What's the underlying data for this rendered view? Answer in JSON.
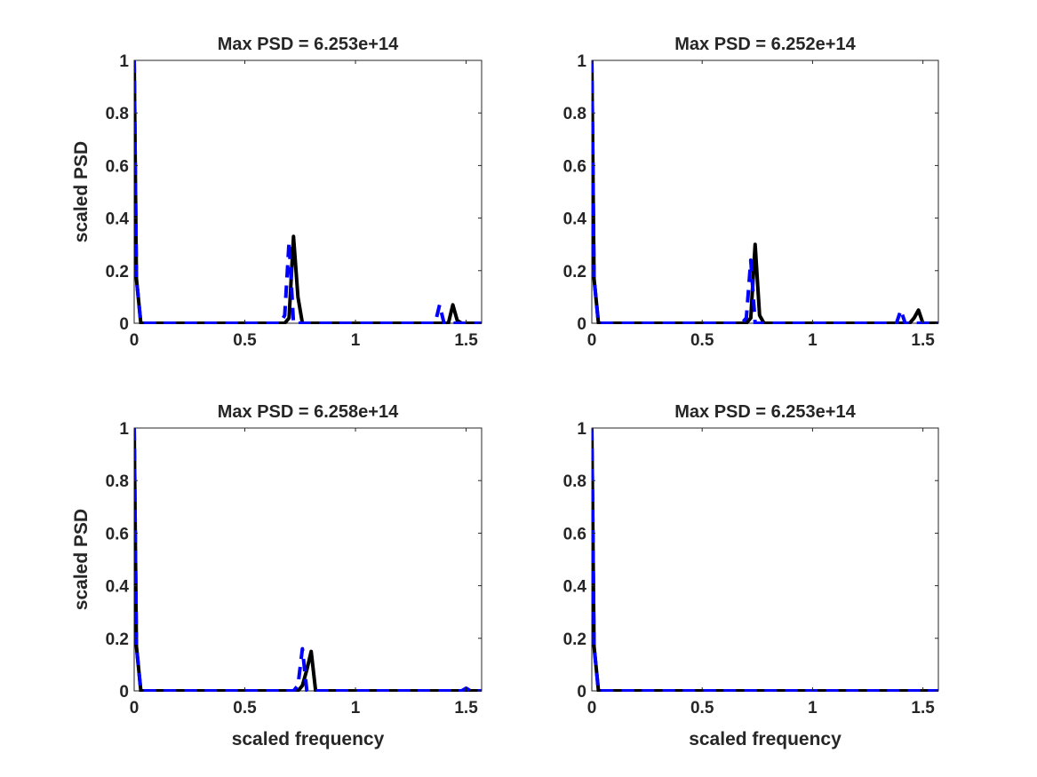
{
  "colors": {
    "solid": "#000000",
    "dashed": "#0000ff",
    "axes": "#262626"
  },
  "chart_data": [
    {
      "type": "line",
      "title": "Max PSD = 6.253e+14",
      "xlabel": "",
      "ylabel": "scaled PSD",
      "xlim": [
        0,
        1.57
      ],
      "ylim": [
        0,
        1
      ],
      "xticks": [
        0,
        0.5,
        1,
        1.5
      ],
      "xtick_labels": [
        "0",
        "0.5",
        "1",
        "1.5"
      ],
      "yticks": [
        0,
        0.2,
        0.4,
        0.6,
        0.8,
        1
      ],
      "ytick_labels": [
        "0",
        "0.2",
        "0.4",
        "0.6",
        "0.8",
        "1"
      ],
      "grid": false,
      "series": [
        {
          "style": "solid",
          "color": "#000000",
          "x": [
            0,
            0.01,
            0.03,
            0.1,
            0.68,
            0.7,
            0.72,
            0.74,
            0.76,
            1.4,
            1.42,
            1.44,
            1.46,
            1.48,
            1.57
          ],
          "y": [
            1,
            0.17,
            0,
            0,
            0,
            0.02,
            0.33,
            0.1,
            0,
            0,
            0,
            0.07,
            0.01,
            0,
            0
          ]
        },
        {
          "style": "dashed",
          "color": "#0000ff",
          "x": [
            0,
            0.01,
            0.03,
            0.1,
            0.66,
            0.68,
            0.7,
            0.72,
            1.36,
            1.38,
            1.4,
            1.57
          ],
          "y": [
            1,
            0.17,
            0,
            0,
            0,
            0.03,
            0.31,
            0,
            0,
            0.07,
            0,
            0
          ]
        }
      ]
    },
    {
      "type": "line",
      "title": "Max PSD = 6.252e+14",
      "xlabel": "",
      "ylabel": "",
      "xlim": [
        0,
        1.57
      ],
      "ylim": [
        0,
        1
      ],
      "xticks": [
        0,
        0.5,
        1,
        1.5
      ],
      "xtick_labels": [
        "0",
        "0.5",
        "1",
        "1.5"
      ],
      "yticks": [
        0,
        0.2,
        0.4,
        0.6,
        0.8,
        1
      ],
      "ytick_labels": [
        "0",
        "0.2",
        "0.4",
        "0.6",
        "0.8",
        "1"
      ],
      "grid": false,
      "series": [
        {
          "style": "solid",
          "color": "#000000",
          "x": [
            0,
            0.01,
            0.03,
            0.1,
            0.7,
            0.72,
            0.74,
            0.76,
            0.78,
            1.42,
            1.44,
            1.46,
            1.48,
            1.5,
            1.57
          ],
          "y": [
            1,
            0.17,
            0,
            0,
            0,
            0.02,
            0.3,
            0.03,
            0,
            0,
            0,
            0.02,
            0.05,
            0,
            0
          ]
        },
        {
          "style": "dashed",
          "color": "#0000ff",
          "x": [
            0,
            0.01,
            0.03,
            0.1,
            0.68,
            0.7,
            0.72,
            0.74,
            1.38,
            1.4,
            1.42,
            1.57
          ],
          "y": [
            1,
            0.17,
            0,
            0,
            0,
            0.02,
            0.24,
            0,
            0,
            0.05,
            0,
            0
          ]
        }
      ]
    },
    {
      "type": "line",
      "title": "Max PSD = 6.258e+14",
      "xlabel": "scaled frequency",
      "ylabel": "scaled PSD",
      "xlim": [
        0,
        1.57
      ],
      "ylim": [
        0,
        1
      ],
      "xticks": [
        0,
        0.5,
        1,
        1.5
      ],
      "xtick_labels": [
        "0",
        "0.5",
        "1",
        "1.5"
      ],
      "yticks": [
        0,
        0.2,
        0.4,
        0.6,
        0.8,
        1
      ],
      "ytick_labels": [
        "0",
        "0.2",
        "0.4",
        "0.6",
        "0.8",
        "1"
      ],
      "grid": false,
      "series": [
        {
          "style": "solid",
          "color": "#000000",
          "x": [
            0,
            0.01,
            0.03,
            0.1,
            0.74,
            0.76,
            0.78,
            0.8,
            0.82,
            1.57
          ],
          "y": [
            1,
            0.17,
            0,
            0,
            0,
            0.02,
            0.08,
            0.15,
            0,
            0
          ]
        },
        {
          "style": "dashed",
          "color": "#0000ff",
          "x": [
            0,
            0.01,
            0.03,
            0.1,
            0.72,
            0.74,
            0.76,
            0.78,
            1.48,
            1.5,
            1.52,
            1.57
          ],
          "y": [
            1,
            0.17,
            0,
            0,
            0,
            0.02,
            0.16,
            0,
            0,
            0.01,
            0,
            0
          ]
        }
      ]
    },
    {
      "type": "line",
      "title": "Max PSD = 6.253e+14",
      "xlabel": "scaled frequency",
      "ylabel": "",
      "xlim": [
        0,
        1.57
      ],
      "ylim": [
        0,
        1
      ],
      "xticks": [
        0,
        0.5,
        1,
        1.5
      ],
      "xtick_labels": [
        "0",
        "0.5",
        "1",
        "1.5"
      ],
      "yticks": [
        0,
        0.2,
        0.4,
        0.6,
        0.8,
        1
      ],
      "ytick_labels": [
        "0",
        "0.2",
        "0.4",
        "0.6",
        "0.8",
        "1"
      ],
      "grid": false,
      "series": [
        {
          "style": "solid",
          "color": "#000000",
          "x": [
            0,
            0.01,
            0.03,
            0.1,
            1.57
          ],
          "y": [
            1,
            0.17,
            0,
            0,
            0
          ]
        },
        {
          "style": "dashed",
          "color": "#0000ff",
          "x": [
            0,
            0.01,
            0.03,
            0.1,
            1.57
          ],
          "y": [
            1,
            0.17,
            0,
            0,
            0
          ]
        }
      ]
    }
  ]
}
